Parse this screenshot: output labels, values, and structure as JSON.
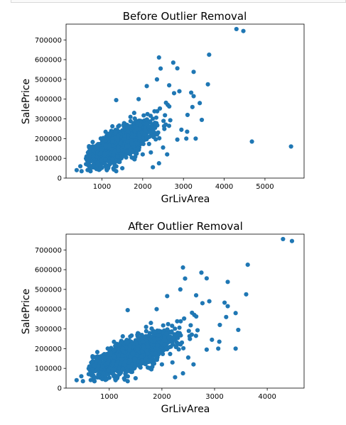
{
  "chart_data": [
    {
      "type": "scatter",
      "title": "Before Outlier Removal",
      "xlabel": "GrLivArea",
      "ylabel": "SalePrice",
      "xlim": [
        120,
        5960
      ],
      "ylim": [
        0,
        780000
      ],
      "xticks": [
        1000,
        2000,
        3000,
        4000,
        5000
      ],
      "yticks": [
        0,
        100000,
        200000,
        300000,
        400000,
        500000,
        600000,
        700000
      ],
      "color": "#1f77b4",
      "points": [
        [
          4300,
          755000
        ],
        [
          4470,
          745000
        ],
        [
          3630,
          625000
        ],
        [
          2400,
          611000
        ],
        [
          2750,
          585000
        ],
        [
          2850,
          556000
        ],
        [
          2440,
          555000
        ],
        [
          3250,
          538000
        ],
        [
          2350,
          500000
        ],
        [
          3600,
          475000
        ],
        [
          2650,
          470000
        ],
        [
          2100,
          466000
        ],
        [
          2900,
          440000
        ],
        [
          3190,
          433000
        ],
        [
          3250,
          415000
        ],
        [
          3400,
          380000
        ],
        [
          2770,
          430000
        ],
        [
          3450,
          295000
        ],
        [
          3100,
          320000
        ],
        [
          3220,
          360000
        ],
        [
          4680,
          185000
        ],
        [
          5640,
          160000
        ],
        [
          3070,
          200000
        ],
        [
          3090,
          235000
        ],
        [
          3300,
          200000
        ],
        [
          2950,
          245000
        ],
        [
          1350,
          395000
        ],
        [
          1900,
          400000
        ],
        [
          1700,
          310000
        ],
        [
          2300,
          280000
        ],
        [
          380,
          40000
        ],
        [
          500,
          35000
        ],
        [
          470,
          60000
        ],
        [
          720,
          35000
        ],
        [
          950,
          45000
        ],
        [
          1120,
          40000
        ],
        [
          1350,
          35000
        ],
        [
          1500,
          50000
        ],
        [
          2250,
          55000
        ],
        [
          2400,
          75000
        ],
        [
          2850,
          195000
        ],
        [
          2200,
          130000
        ],
        [
          2500,
          155000
        ],
        [
          2600,
          120000
        ],
        [
          1800,
          95000
        ],
        [
          2000,
          120000
        ]
      ],
      "cluster": {
        "n": 1400,
        "x_mean": 1470,
        "x_sd": 380,
        "slope": 107,
        "intercept": 20000,
        "noise_sd": 37000,
        "x_min": 600,
        "x_max": 2700
      }
    },
    {
      "type": "scatter",
      "title": "After Outlier Removal",
      "xlabel": "GrLivArea",
      "ylabel": "SalePrice",
      "xlim": [
        180,
        4700
      ],
      "ylim": [
        0,
        780000
      ],
      "xticks": [
        1000,
        2000,
        3000,
        4000
      ],
      "yticks": [
        0,
        100000,
        200000,
        300000,
        400000,
        500000,
        600000,
        700000
      ],
      "color": "#1f77b4",
      "points": [
        [
          4300,
          755000
        ],
        [
          4470,
          745000
        ],
        [
          3630,
          625000
        ],
        [
          2400,
          611000
        ],
        [
          2750,
          585000
        ],
        [
          2850,
          556000
        ],
        [
          2440,
          555000
        ],
        [
          3250,
          538000
        ],
        [
          2350,
          500000
        ],
        [
          3600,
          475000
        ],
        [
          2650,
          470000
        ],
        [
          2100,
          466000
        ],
        [
          2900,
          440000
        ],
        [
          3190,
          433000
        ],
        [
          3250,
          415000
        ],
        [
          3400,
          380000
        ],
        [
          2770,
          430000
        ],
        [
          3450,
          295000
        ],
        [
          3100,
          320000
        ],
        [
          3220,
          360000
        ],
        [
          3070,
          200000
        ],
        [
          3090,
          235000
        ],
        [
          3400,
          200000
        ],
        [
          2950,
          245000
        ],
        [
          1350,
          395000
        ],
        [
          1900,
          400000
        ],
        [
          1700,
          310000
        ],
        [
          2300,
          280000
        ],
        [
          380,
          40000
        ],
        [
          500,
          35000
        ],
        [
          470,
          60000
        ],
        [
          720,
          35000
        ],
        [
          950,
          45000
        ],
        [
          1120,
          40000
        ],
        [
          1350,
          35000
        ],
        [
          1500,
          50000
        ],
        [
          2250,
          55000
        ],
        [
          2400,
          75000
        ],
        [
          2850,
          195000
        ],
        [
          2200,
          130000
        ],
        [
          2500,
          155000
        ],
        [
          2600,
          120000
        ],
        [
          1800,
          95000
        ],
        [
          2000,
          120000
        ]
      ],
      "cluster": {
        "n": 1400,
        "x_mean": 1470,
        "x_sd": 380,
        "slope": 107,
        "intercept": 20000,
        "noise_sd": 37000,
        "x_min": 600,
        "x_max": 2700
      }
    }
  ]
}
